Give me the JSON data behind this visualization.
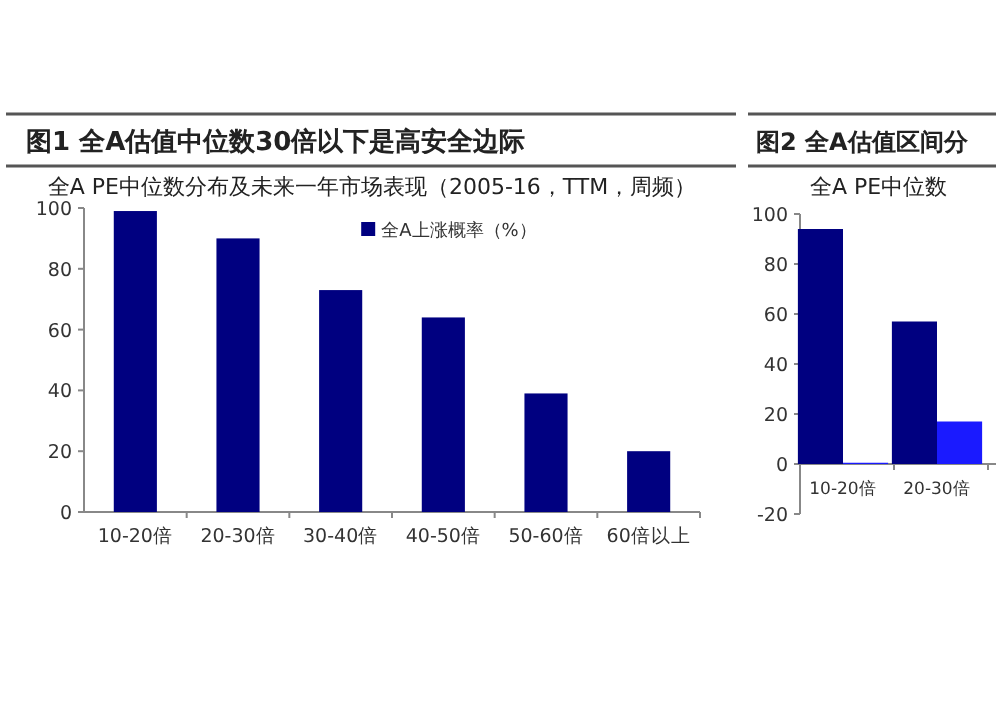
{
  "chart_data": [
    {
      "type": "bar",
      "title": "图1 全A估值中位数30倍以下是高安全边际",
      "subtitle": "全A PE中位数分布及未来一年市场表现（2005-16，TTM，周频）",
      "categories": [
        "10-20倍",
        "20-30倍",
        "30-40倍",
        "40-50倍",
        "50-60倍",
        "60倍以上"
      ],
      "series": [
        {
          "name": "全A上涨概率（%）",
          "color": "#000080",
          "values": [
            99,
            90,
            73,
            64,
            39,
            20
          ]
        }
      ],
      "ylim": [
        0,
        100
      ],
      "yticks": [
        0,
        20,
        40,
        60,
        80,
        100
      ],
      "legend": "top right",
      "grid": false
    },
    {
      "type": "bar",
      "title": "图2 全A估值区间分",
      "subtitle": "全A PE中位数",
      "categories": [
        "10-20倍",
        "20-30倍"
      ],
      "series": [
        {
          "color": "#000080",
          "values": [
            94,
            57
          ]
        },
        {
          "color": "#1a1aff",
          "values": [
            0.5,
            17
          ]
        }
      ],
      "ylim": [
        -20,
        100
      ],
      "yticks": [
        -20,
        0,
        20,
        40,
        60,
        80,
        100
      ],
      "grid": false
    }
  ]
}
